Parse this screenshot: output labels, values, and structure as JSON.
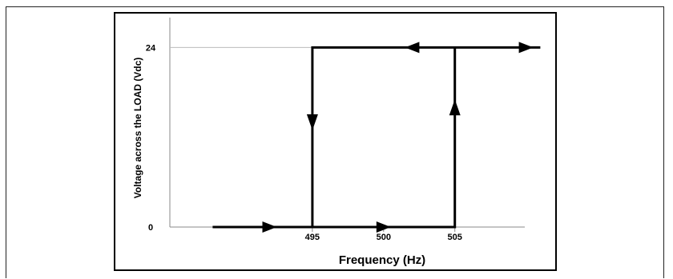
{
  "chart_data": {
    "type": "line",
    "title": "",
    "xlabel": "Frequency (Hz)",
    "ylabel": "Voltage across the LOAD (Vdc)",
    "xlim": [
      485,
      513
    ],
    "ylim": [
      0,
      28
    ],
    "x_ticks": [
      495,
      500,
      505
    ],
    "y_ticks": [
      0,
      24
    ],
    "grid": false,
    "series": [
      {
        "points": [
          [
            488,
            0
          ],
          [
            495,
            0
          ],
          [
            495,
            24
          ],
          [
            511,
            24
          ]
        ],
        "arrows": [
          {
            "x": 492,
            "y": 0,
            "dir": "right"
          },
          {
            "x": 495,
            "y": 14,
            "dir": "down"
          },
          {
            "x": 502,
            "y": 24,
            "dir": "left"
          },
          {
            "x": 510,
            "y": 24,
            "dir": "right"
          }
        ]
      },
      {
        "points": [
          [
            495,
            0
          ],
          [
            505,
            0
          ],
          [
            505,
            24
          ]
        ],
        "arrows": [
          {
            "x": 500,
            "y": 0,
            "dir": "right"
          },
          {
            "x": 505,
            "y": 16,
            "dir": "up"
          }
        ]
      }
    ]
  }
}
